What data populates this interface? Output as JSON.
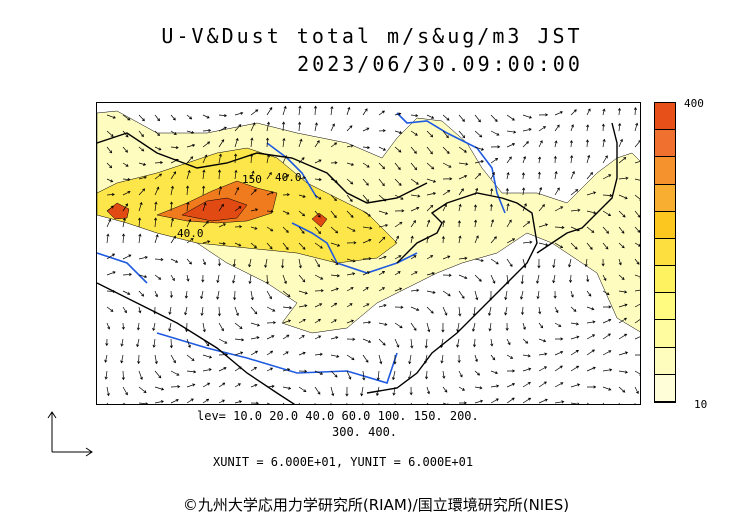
{
  "title_line1": "U-V&Dust total m/s&ug/m3 JST",
  "title_line2": "2023/06/30.09:00:00",
  "colorbar": {
    "max_label": "400",
    "min_label": "10",
    "colors": [
      "#e8501a",
      "#f07030",
      "#f5922e",
      "#f8ae30",
      "#fcc820",
      "#fde040",
      "#fef260",
      "#fffa80",
      "#fffca0",
      "#fffdbe",
      "#fffed8"
    ]
  },
  "levels_line1": "lev= 10.0 20.0 40.0 60.0 100. 150. 200.",
  "levels_line2": "300. 400.",
  "units": "XUNIT = 6.000E+01, YUNIT = 6.000E+01",
  "credit": "©九州大学応用力学研究所(RIAM)/国立環境研究所(NIES)",
  "contour_labels": [
    "150",
    "40.0",
    "40.0"
  ],
  "colors": {
    "coastline": "#000000",
    "river": "#1e5ae0",
    "dust_low": "#fffcc0",
    "dust_mid": "#fde64a",
    "dust_high": "#f07a1e",
    "dust_peak": "#e24a14",
    "wind_arrow": "#000000"
  }
}
